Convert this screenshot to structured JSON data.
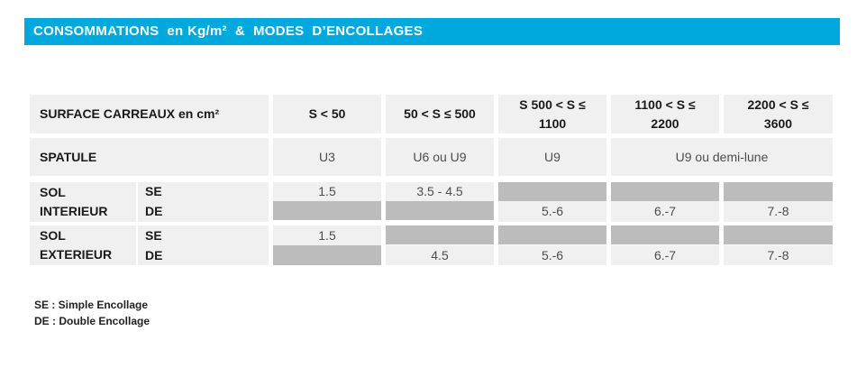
{
  "banner": {
    "title": "CONSOMMATIONS  en Kg/m²  &  MODES  D’ENCOLLAGES"
  },
  "table": {
    "header": {
      "label": "SURFACE CARREAUX en cm²",
      "columns": [
        "S < 50",
        "50 < S ≤ 500",
        "S 500 < S ≤ 1100",
        "1100 < S ≤ 2200",
        "2200 < S ≤ 3600"
      ]
    },
    "spatule": {
      "label": "SPATULE",
      "values": [
        "U3",
        "U6 ou U9",
        "U9",
        "U9 ou demi-lune"
      ]
    },
    "sol_interieur": {
      "label_line1": "SOL",
      "label_line2": "INTERIEUR",
      "se_label": "SE",
      "de_label": "DE",
      "se_values": [
        "1.5",
        "3.5 - 4.5",
        "",
        "",
        ""
      ],
      "de_values": [
        "",
        "",
        "5.-6",
        "6.-7",
        "7.-8"
      ]
    },
    "sol_exterieur": {
      "label_line1": "SOL",
      "label_line2": "EXTERIEUR",
      "se_label": "SE",
      "de_label": "DE",
      "se_values": [
        "1.5",
        "",
        "",
        "",
        ""
      ],
      "de_values": [
        "",
        "4.5",
        "5.-6",
        "6.-7",
        "7.-8"
      ]
    }
  },
  "legend": {
    "se": "SE : Simple Encollage",
    "de": "DE : Double Encollage"
  },
  "colors": {
    "banner": "#00a9dd",
    "cell": "#f0f0f0",
    "empty_cell": "#bcbcbc"
  }
}
